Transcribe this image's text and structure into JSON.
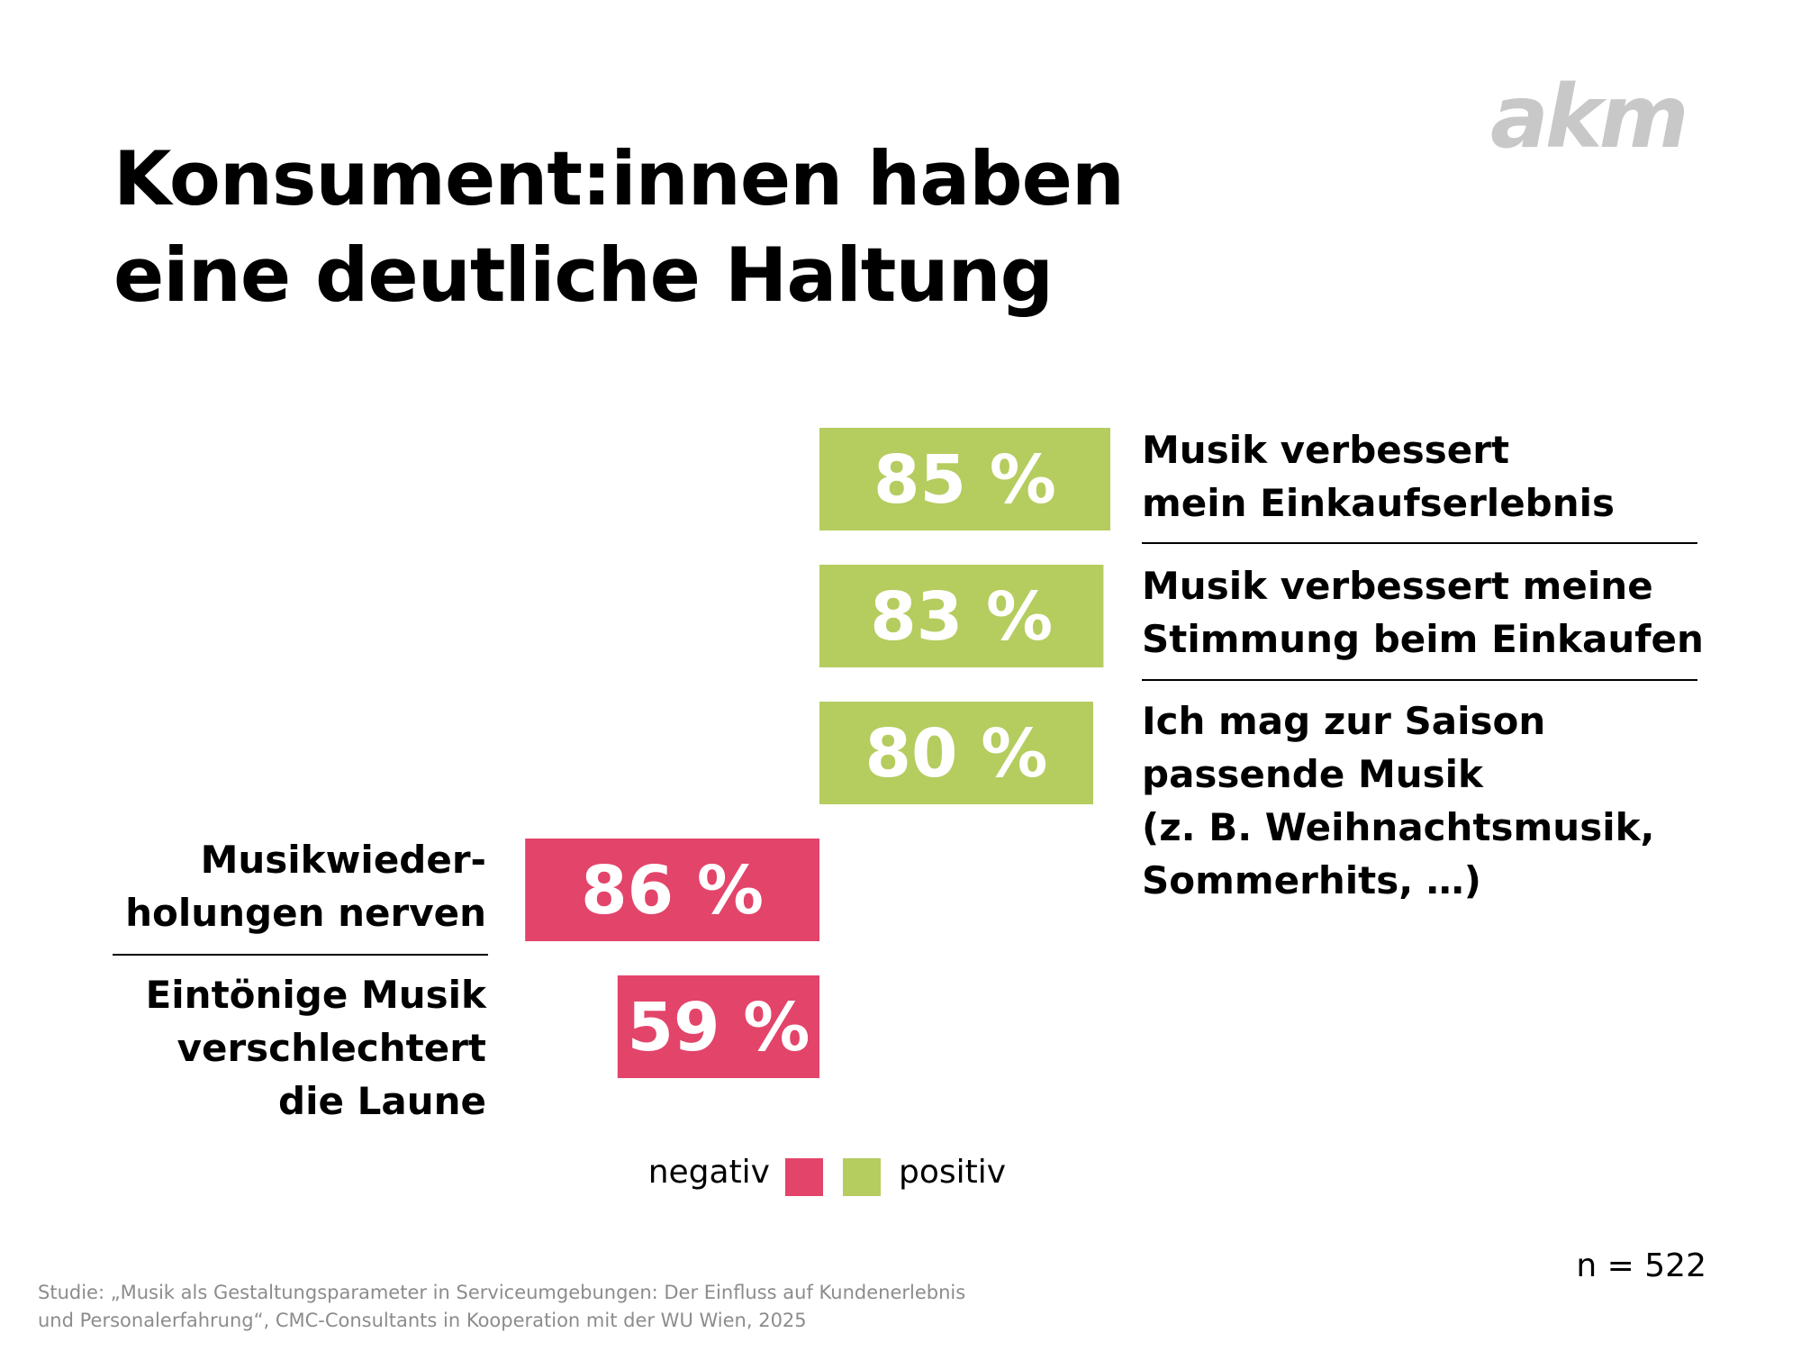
{
  "logo": {
    "text": "akm",
    "color": "#c8c8c8"
  },
  "title": {
    "line1": "Konsument:innen haben",
    "line2": "eine deutliche Haltung"
  },
  "colors": {
    "positive": "#b5cc5f",
    "negative": "#e3446a",
    "rule": "#000000"
  },
  "chart_data": {
    "type": "bar",
    "orientation": "horizontal",
    "value_unit": "%",
    "categories": [
      "Musik verbessert mein Einkaufserlebnis",
      "Musik verbessert meine Stimmung beim Einkaufen",
      "Ich mag zur Saison passende Musik (z. B. Weihnachtsmusik, Sommerhits, …)",
      "Musikwiederholungen nerven",
      "Eintönige Musik verschlechtert die Laune"
    ],
    "series": [
      {
        "name": "positiv",
        "values": [
          85,
          83,
          80,
          null,
          null
        ]
      },
      {
        "name": "negativ",
        "values": [
          null,
          null,
          null,
          86,
          59
        ]
      }
    ],
    "bars": [
      {
        "value": 85,
        "value_label": "85 %",
        "sentiment": "positiv",
        "label_lines": [
          "Musik verbessert",
          "mein Einkaufserlebnis"
        ]
      },
      {
        "value": 83,
        "value_label": "83 %",
        "sentiment": "positiv",
        "label_lines": [
          "Musik verbessert meine",
          "Stimmung beim Einkaufen"
        ]
      },
      {
        "value": 80,
        "value_label": "80 %",
        "sentiment": "positiv",
        "label_lines": [
          "Ich mag zur Saison",
          "passende Musik",
          "(z. B. Weihnachtsmusik,",
          "Sommerhits, …)"
        ]
      },
      {
        "value": 86,
        "value_label": "86 %",
        "sentiment": "negativ",
        "label_lines": [
          "Musikwieder-",
          "holungen nerven"
        ]
      },
      {
        "value": 59,
        "value_label": "59 %",
        "sentiment": "negativ",
        "label_lines": [
          "Eintönige Musik",
          "verschlechtert",
          "die Laune"
        ]
      }
    ],
    "legend": {
      "negative_label": "negativ",
      "positive_label": "positiv",
      "position": "bottom-center"
    }
  },
  "sample_size": "n = 522",
  "source": {
    "line1": "Studie: „Musik als Gestaltungsparameter in Serviceumgebungen: Der Einfluss auf Kundenerlebnis",
    "line2": "und Personalerfahrung“, CMC-Consultants in Kooperation mit der WU Wien, 2025"
  }
}
